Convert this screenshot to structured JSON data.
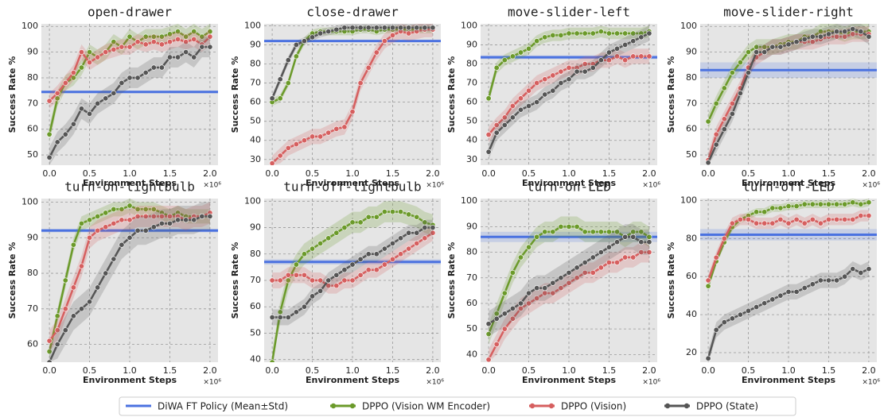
{
  "legend": [
    {
      "name": "DiWA FT Policy (Mean±Std)",
      "color": "#4b72e0"
    },
    {
      "name": "DPPO (Vision WM Encoder)",
      "color": "#6b9a2a"
    },
    {
      "name": "DPPO (Vision)",
      "color": "#d65f5f"
    },
    {
      "name": "DPPO (State)",
      "color": "#555555"
    }
  ],
  "chart_data": [
    {
      "type": "line",
      "title": "open-drawer",
      "xlabel": "Environment Steps",
      "ylabel": "Success Rate %",
      "x_multiplier": "×10⁶",
      "grid": true,
      "x": [
        0,
        0.1,
        0.2,
        0.3,
        0.4,
        0.5,
        0.6,
        0.7,
        0.8,
        0.9,
        1,
        1.1,
        1.2,
        1.3,
        1.4,
        1.5,
        1.6,
        1.7,
        1.8,
        1.9,
        2
      ],
      "xlim": [
        -0.1,
        2.1
      ],
      "xticks": [
        {
          "value": 0,
          "label": "0.0"
        },
        {
          "value": 0.5,
          "label": "0.5"
        },
        {
          "value": 1,
          "label": "1.0"
        },
        {
          "value": 1.5,
          "label": "1.5"
        },
        {
          "value": 2,
          "label": "2.0"
        }
      ],
      "ylim": [
        46,
        101
      ],
      "yticks": [
        50,
        60,
        70,
        80,
        90,
        100
      ],
      "diwa": {
        "mean": 74.5,
        "std": 0.5
      },
      "series": [
        {
          "values": [
            58,
            72,
            78,
            80,
            84,
            90,
            88,
            90,
            94,
            92,
            96,
            94,
            96,
            96,
            96,
            97,
            98,
            96,
            98,
            96,
            98
          ],
          "std": 3
        },
        {
          "values": [
            71,
            74,
            78,
            82,
            90,
            86,
            88,
            90,
            91,
            92,
            92,
            94,
            93,
            94,
            93,
            94,
            95,
            94,
            95,
            93,
            96
          ],
          "std": 3
        },
        {
          "values": [
            49,
            55,
            58,
            62,
            68,
            66,
            70,
            72,
            74,
            78,
            80,
            80,
            82,
            84,
            84,
            88,
            88,
            90,
            88,
            92,
            92
          ],
          "std": 4
        }
      ]
    },
    {
      "type": "line",
      "title": "close-drawer",
      "xlabel": "Environment Steps",
      "ylabel": "Success Rate %",
      "x_multiplier": "×10⁶",
      "grid": true,
      "x": [
        0,
        0.1,
        0.2,
        0.3,
        0.4,
        0.5,
        0.6,
        0.7,
        0.8,
        0.9,
        1,
        1.1,
        1.2,
        1.3,
        1.4,
        1.5,
        1.6,
        1.7,
        1.8,
        1.9,
        2
      ],
      "xlim": [
        -0.1,
        2.1
      ],
      "xticks": [
        {
          "value": 0,
          "label": "0.0"
        },
        {
          "value": 0.5,
          "label": "0.5"
        },
        {
          "value": 1,
          "label": "1.0"
        },
        {
          "value": 1.5,
          "label": "1.5"
        },
        {
          "value": 2,
          "label": "2.0"
        }
      ],
      "ylim": [
        27,
        101
      ],
      "yticks": [
        30,
        40,
        50,
        60,
        70,
        80,
        90,
        100
      ],
      "diwa": {
        "mean": 92,
        "std": 0.5
      },
      "series": [
        {
          "values": [
            60,
            62,
            70,
            84,
            92,
            96,
            97,
            97,
            97,
            97,
            97,
            98,
            98,
            97,
            98,
            98,
            98,
            98,
            98,
            98,
            98
          ],
          "std": 2
        },
        {
          "values": [
            28,
            32,
            36,
            38,
            40,
            42,
            42,
            44,
            46,
            47,
            55,
            70,
            78,
            86,
            92,
            95,
            97,
            96,
            97,
            98,
            98
          ],
          "std": 4
        },
        {
          "values": [
            62,
            72,
            82,
            90,
            92,
            94,
            96,
            97,
            98,
            99,
            99,
            99,
            99,
            99,
            99,
            99,
            99,
            99,
            99,
            99,
            99
          ],
          "std": 2
        }
      ]
    },
    {
      "type": "line",
      "title": "move-slider-left",
      "xlabel": "Environment Steps",
      "ylabel": "Success Rate %",
      "x_multiplier": "×10⁶",
      "grid": true,
      "x": [
        0,
        0.1,
        0.2,
        0.3,
        0.4,
        0.5,
        0.6,
        0.7,
        0.8,
        0.9,
        1,
        1.1,
        1.2,
        1.3,
        1.4,
        1.5,
        1.6,
        1.7,
        1.8,
        1.9,
        2
      ],
      "xlim": [
        -0.1,
        2.1
      ],
      "xticks": [
        {
          "value": 0,
          "label": "0.0"
        },
        {
          "value": 0.5,
          "label": "0.5"
        },
        {
          "value": 1,
          "label": "1.0"
        },
        {
          "value": 1.5,
          "label": "1.5"
        },
        {
          "value": 2,
          "label": "2.0"
        }
      ],
      "ylim": [
        27,
        101
      ],
      "yticks": [
        30,
        40,
        50,
        60,
        70,
        80,
        90,
        100
      ],
      "diwa": {
        "mean": 83.5,
        "std": 1
      },
      "series": [
        {
          "values": [
            62,
            78,
            82,
            84,
            86,
            88,
            92,
            94,
            95,
            95,
            96,
            96,
            96,
            96,
            97,
            96,
            96,
            96,
            96,
            96,
            97
          ],
          "std": 3
        },
        {
          "values": [
            43,
            48,
            52,
            58,
            62,
            66,
            70,
            72,
            74,
            76,
            78,
            78,
            80,
            80,
            82,
            82,
            84,
            82,
            84,
            84,
            84
          ],
          "std": 4
        },
        {
          "values": [
            34,
            44,
            48,
            52,
            56,
            58,
            60,
            64,
            66,
            70,
            72,
            76,
            76,
            78,
            82,
            86,
            88,
            90,
            92,
            94,
            96
          ],
          "std": 4
        }
      ]
    },
    {
      "type": "line",
      "title": "move-slider-right",
      "xlabel": "Environment Steps",
      "ylabel": "Success Rate %",
      "x_multiplier": "×10⁶",
      "grid": true,
      "x": [
        0,
        0.1,
        0.2,
        0.3,
        0.4,
        0.5,
        0.6,
        0.7,
        0.8,
        0.9,
        1,
        1.1,
        1.2,
        1.3,
        1.4,
        1.5,
        1.6,
        1.7,
        1.8,
        1.9,
        2
      ],
      "xlim": [
        -0.1,
        2.1
      ],
      "xticks": [
        {
          "value": 0,
          "label": "0.0"
        },
        {
          "value": 0.5,
          "label": "0.5"
        },
        {
          "value": 1,
          "label": "1.0"
        },
        {
          "value": 1.5,
          "label": "1.5"
        },
        {
          "value": 2,
          "label": "2.0"
        }
      ],
      "ylim": [
        46,
        101
      ],
      "yticks": [
        50,
        60,
        70,
        80,
        90,
        100
      ],
      "diwa": {
        "mean": 83,
        "std": 3
      },
      "series": [
        {
          "values": [
            63,
            70,
            76,
            82,
            86,
            90,
            92,
            92,
            92,
            93,
            94,
            94,
            96,
            96,
            98,
            98,
            98,
            97,
            98,
            98,
            98
          ],
          "std": 3
        },
        {
          "values": [
            48,
            58,
            64,
            70,
            76,
            84,
            88,
            90,
            92,
            92,
            93,
            94,
            94,
            94,
            95,
            96,
            96,
            96,
            97,
            97,
            97
          ],
          "std": 3
        },
        {
          "values": [
            47,
            54,
            60,
            66,
            74,
            82,
            90,
            90,
            92,
            92,
            93,
            94,
            95,
            96,
            96,
            97,
            98,
            98,
            99,
            98,
            96
          ],
          "std": 3
        }
      ]
    },
    {
      "type": "line",
      "title": "turn-on-lightbulb",
      "xlabel": "Environment Steps",
      "ylabel": "Success Rate %",
      "x_multiplier": "×10⁶",
      "grid": true,
      "x": [
        0,
        0.1,
        0.2,
        0.3,
        0.4,
        0.5,
        0.6,
        0.7,
        0.8,
        0.9,
        1,
        1.1,
        1.2,
        1.3,
        1.4,
        1.5,
        1.6,
        1.7,
        1.8,
        1.9,
        2
      ],
      "xlim": [
        -0.1,
        2.1
      ],
      "xticks": [
        {
          "value": 0,
          "label": "0.0"
        },
        {
          "value": 0.5,
          "label": "0.5"
        },
        {
          "value": 1,
          "label": "1.0"
        },
        {
          "value": 1.5,
          "label": "1.5"
        },
        {
          "value": 2,
          "label": "2.0"
        }
      ],
      "ylim": [
        55,
        101
      ],
      "yticks": [
        60,
        70,
        80,
        90,
        100
      ],
      "diwa": {
        "mean": 92,
        "std": 0.5
      },
      "series": [
        {
          "values": [
            58,
            68,
            78,
            88,
            94,
            95,
            96,
            97,
            98,
            98,
            99,
            98,
            98,
            98,
            97,
            96,
            97,
            96,
            96,
            96,
            96
          ],
          "std": 2
        },
        {
          "values": [
            61,
            64,
            70,
            76,
            82,
            90,
            92,
            93,
            94,
            95,
            95,
            96,
            96,
            96,
            96,
            96,
            96,
            95,
            96,
            96,
            97
          ],
          "std": 3
        },
        {
          "values": [
            55,
            60,
            64,
            68,
            70,
            72,
            76,
            80,
            84,
            88,
            90,
            92,
            92,
            93,
            94,
            94,
            95,
            95,
            95,
            96,
            96
          ],
          "std": 4
        }
      ]
    },
    {
      "type": "line",
      "title": "turn-off-lightbulb",
      "xlabel": "Environment Steps",
      "ylabel": "Success Rate %",
      "x_multiplier": "×10⁶",
      "grid": true,
      "x": [
        0,
        0.1,
        0.2,
        0.3,
        0.4,
        0.5,
        0.6,
        0.7,
        0.8,
        0.9,
        1,
        1.1,
        1.2,
        1.3,
        1.4,
        1.5,
        1.6,
        1.7,
        1.8,
        1.9,
        2
      ],
      "xlim": [
        -0.1,
        2.1
      ],
      "xticks": [
        {
          "value": 0,
          "label": "0.0"
        },
        {
          "value": 0.5,
          "label": "0.5"
        },
        {
          "value": 1,
          "label": "1.0"
        },
        {
          "value": 1.5,
          "label": "1.5"
        },
        {
          "value": 2,
          "label": "2.0"
        }
      ],
      "ylim": [
        39,
        101
      ],
      "yticks": [
        40,
        50,
        60,
        70,
        80,
        90,
        100
      ],
      "diwa": {
        "mean": 77,
        "std": 1
      },
      "series": [
        {
          "values": [
            39,
            58,
            70,
            76,
            80,
            82,
            84,
            86,
            88,
            90,
            92,
            92,
            94,
            94,
            96,
            96,
            96,
            95,
            94,
            92,
            91
          ],
          "std": 4
        },
        {
          "values": [
            70,
            70,
            72,
            72,
            72,
            70,
            70,
            68,
            68,
            70,
            70,
            72,
            74,
            74,
            76,
            78,
            80,
            82,
            84,
            86,
            88
          ],
          "std": 3
        },
        {
          "values": [
            56,
            56,
            56,
            58,
            60,
            64,
            66,
            70,
            72,
            74,
            76,
            78,
            80,
            80,
            82,
            84,
            86,
            88,
            88,
            90,
            90
          ],
          "std": 3
        }
      ]
    },
    {
      "type": "line",
      "title": "turn-on-LED",
      "xlabel": "Environment Steps",
      "ylabel": "Success Rate %",
      "x_multiplier": "×10⁶",
      "grid": true,
      "x": [
        0,
        0.1,
        0.2,
        0.3,
        0.4,
        0.5,
        0.6,
        0.7,
        0.8,
        0.9,
        1,
        1.1,
        1.2,
        1.3,
        1.4,
        1.5,
        1.6,
        1.7,
        1.8,
        1.9,
        2
      ],
      "xlim": [
        -0.1,
        2.1
      ],
      "xticks": [
        {
          "value": 0,
          "label": "0.0"
        },
        {
          "value": 0.5,
          "label": "0.5"
        },
        {
          "value": 1,
          "label": "1.0"
        },
        {
          "value": 1.5,
          "label": "1.5"
        },
        {
          "value": 2,
          "label": "2.0"
        }
      ],
      "ylim": [
        37,
        101
      ],
      "yticks": [
        40,
        50,
        60,
        70,
        80,
        90,
        100
      ],
      "diwa": {
        "mean": 86,
        "std": 2
      },
      "series": [
        {
          "values": [
            48,
            56,
            64,
            72,
            78,
            82,
            86,
            88,
            88,
            90,
            90,
            90,
            88,
            88,
            88,
            88,
            88,
            86,
            88,
            88,
            86
          ],
          "std": 4
        },
        {
          "values": [
            38,
            44,
            50,
            54,
            58,
            60,
            62,
            64,
            64,
            66,
            68,
            70,
            72,
            72,
            74,
            76,
            76,
            78,
            78,
            80,
            80
          ],
          "std": 4
        },
        {
          "values": [
            52,
            54,
            56,
            58,
            60,
            64,
            66,
            66,
            68,
            70,
            72,
            74,
            76,
            78,
            80,
            82,
            84,
            86,
            86,
            84,
            84
          ],
          "std": 5
        }
      ]
    },
    {
      "type": "line",
      "title": "turn-off-LED",
      "xlabel": "Environment Steps",
      "ylabel": "Success Rate %",
      "x_multiplier": "×10⁶",
      "grid": true,
      "x": [
        0,
        0.1,
        0.2,
        0.3,
        0.4,
        0.5,
        0.6,
        0.7,
        0.8,
        0.9,
        1,
        1.1,
        1.2,
        1.3,
        1.4,
        1.5,
        1.6,
        1.7,
        1.8,
        1.9,
        2
      ],
      "xlim": [
        -0.1,
        2.1
      ],
      "xticks": [
        {
          "value": 0,
          "label": "0.0"
        },
        {
          "value": 0.5,
          "label": "0.5"
        },
        {
          "value": 1,
          "label": "1.0"
        },
        {
          "value": 1.5,
          "label": "1.5"
        },
        {
          "value": 2,
          "label": "2.0"
        }
      ],
      "ylim": [
        15,
        101
      ],
      "yticks": [
        20,
        40,
        60,
        80,
        100
      ],
      "diwa": {
        "mean": 82,
        "std": 3
      },
      "series": [
        {
          "values": [
            55,
            68,
            78,
            86,
            90,
            92,
            94,
            94,
            96,
            96,
            97,
            97,
            98,
            98,
            98,
            98,
            98,
            98,
            99,
            98,
            99
          ],
          "std": 2
        },
        {
          "values": [
            58,
            70,
            80,
            88,
            90,
            90,
            88,
            88,
            88,
            90,
            88,
            90,
            88,
            90,
            88,
            90,
            90,
            90,
            90,
            92,
            92
          ],
          "std": 3
        },
        {
          "values": [
            17,
            32,
            36,
            38,
            40,
            42,
            44,
            46,
            48,
            50,
            52,
            52,
            54,
            56,
            58,
            58,
            58,
            60,
            64,
            62,
            64
          ],
          "std": 4
        }
      ]
    }
  ]
}
